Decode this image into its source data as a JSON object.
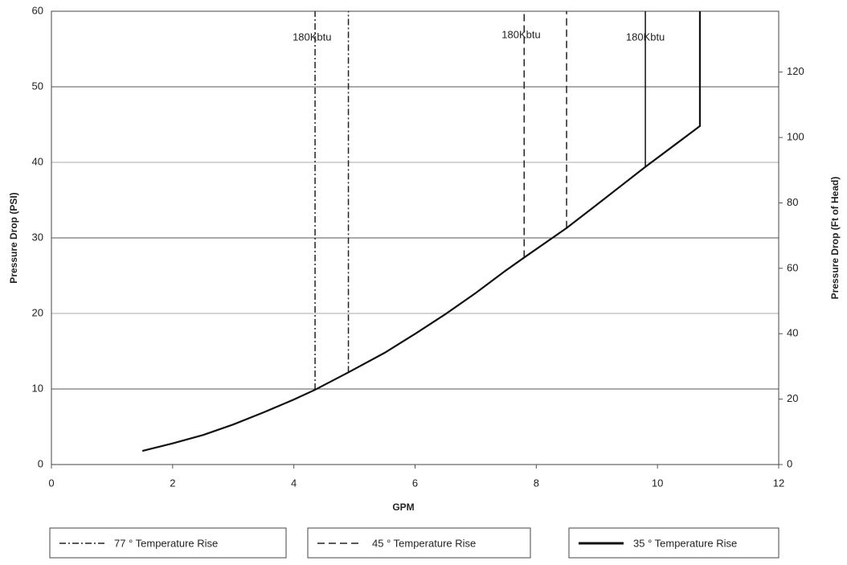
{
  "chart_data": {
    "type": "line",
    "xlabel": "GPM",
    "ylabel": "Pressure Drop (PSI)",
    "y2label": "Pressure Drop (Ft of Head)",
    "xlim": [
      0,
      12
    ],
    "xticks": [
      0,
      2,
      4,
      6,
      8,
      10,
      12
    ],
    "ylim": [
      0,
      60
    ],
    "yticks": [
      0,
      10,
      20,
      30,
      40,
      50,
      60
    ],
    "y2lim": [
      0,
      138.6
    ],
    "y2ticks": [
      0,
      20,
      40,
      60,
      80,
      100,
      120
    ],
    "grid": true,
    "series": [
      {
        "name": "77 ° Temperature Rise",
        "color": "#222",
        "dash": "dashdot",
        "x": [],
        "values": [],
        "verticals": {
          "x": [
            4.35,
            4.9
          ],
          "from": [
            9.9,
            12.2
          ]
        }
      },
      {
        "name": "45 ° Temperature Rise",
        "color": "#222",
        "dash": "dashed",
        "x": [],
        "values": [],
        "verticals": {
          "x": [
            7.8,
            8.5
          ],
          "from": [
            27.4,
            31.3
          ]
        }
      },
      {
        "name": "35 ° Temperature Rise",
        "color": "#111",
        "dash": "solid",
        "x": [
          1.5,
          2,
          2.5,
          3,
          3.5,
          4,
          4.35,
          4.9,
          5.5,
          6,
          6.5,
          7,
          7.5,
          7.8,
          8.5,
          9,
          9.8,
          10.3,
          10.7,
          10.7
        ],
        "values": [
          1.8,
          2.8,
          3.9,
          5.3,
          6.9,
          8.6,
          9.9,
          12.2,
          14.8,
          17.3,
          19.9,
          22.7,
          25.7,
          27.4,
          31.3,
          34.4,
          39.4,
          42.4,
          44.8,
          60
        ],
        "verticals": {
          "x": [
            9.8
          ],
          "from": [
            39.4
          ]
        }
      }
    ],
    "annotations": [
      {
        "text": "180Kbtu",
        "x": 4.3,
        "y": 56.5
      },
      {
        "text": "180Kbtu",
        "x": 7.75,
        "y": 56.8
      },
      {
        "text": "180Kbtu",
        "x": 9.8,
        "y": 56.5
      }
    ]
  }
}
